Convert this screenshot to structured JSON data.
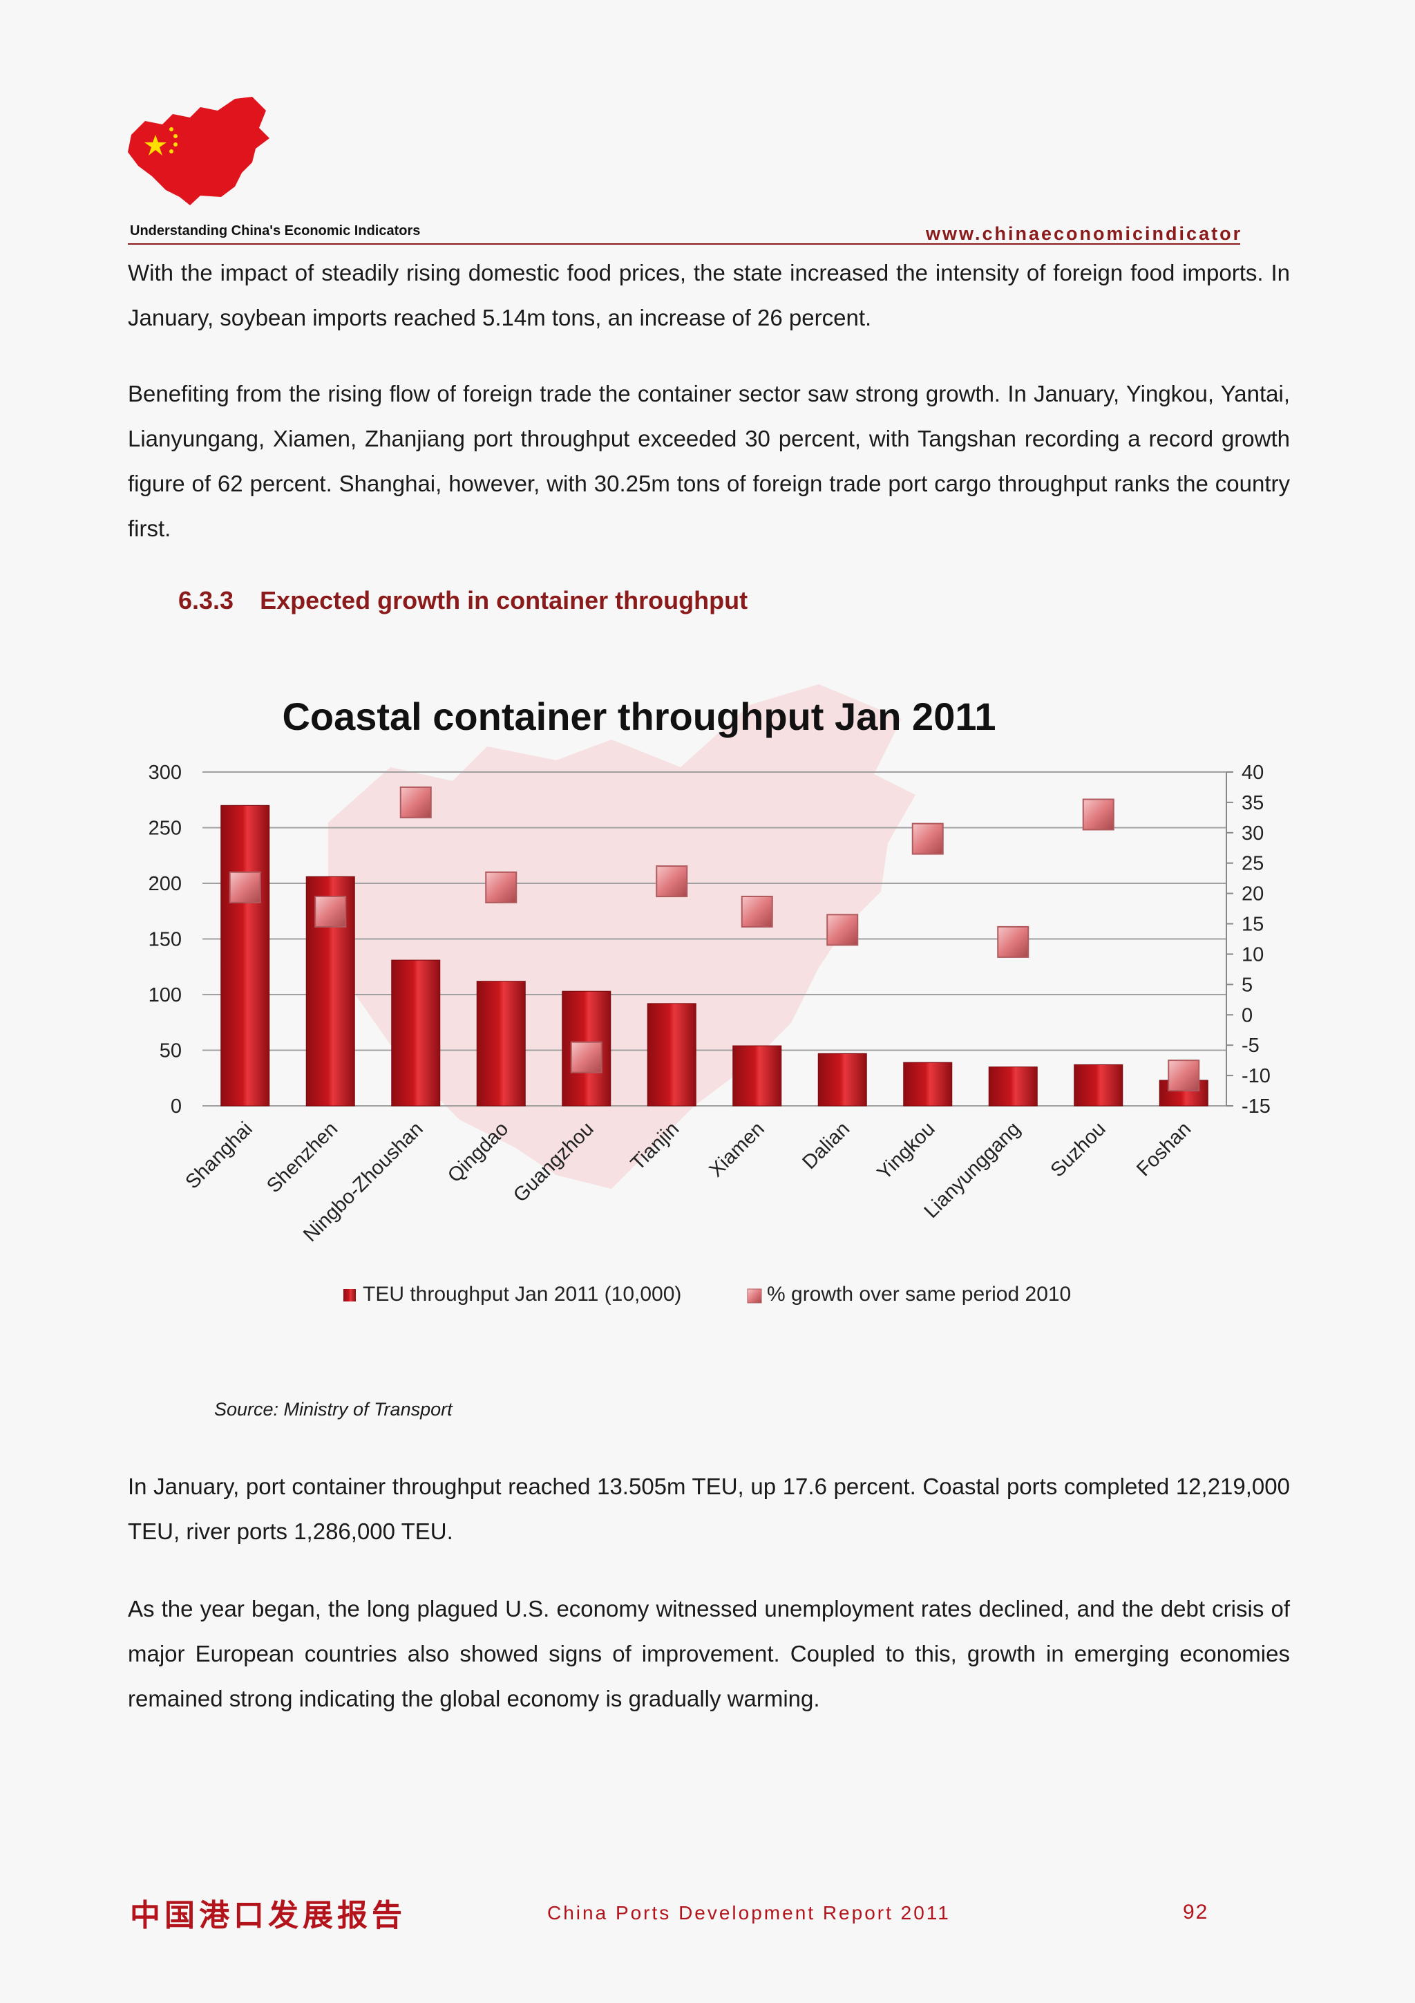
{
  "header": {
    "tagline": "Understanding China's Economic Indicators",
    "website": "www.chinaeconomicindicator"
  },
  "paragraphs": [
    "With the impact of steadily rising domestic food prices, the state increased the intensity of foreign food imports. In January, soybean imports reached 5.14m tons, an increase of 26 percent.",
    "Benefiting from the rising flow of foreign trade the container sector saw strong growth. In January, Yingkou, Yantai, Lianyungang, Xiamen, Zhanjiang port throughput exceeded 30 percent, with Tangshan recording a record growth figure of 62 percent. Shanghai, however, with 30.25m tons of foreign trade port cargo throughput ranks the country first.",
    "In January, port container throughput reached 13.505m TEU, up 17.6 percent. Coastal ports completed 12,219,000 TEU, river ports 1,286,000 TEU.",
    "As the year began, the long plagued U.S. economy witnessed unemployment rates declined, and the debt crisis of major European countries also showed signs of improvement. Coupled to this, growth in emerging economies remained strong indicating the global economy is gradually warming."
  ],
  "section": {
    "number": "6.3.3",
    "title": "Expected growth in container throughput"
  },
  "chart_data": {
    "type": "bar",
    "title": "Coastal container throughput Jan 2011",
    "categories": [
      "Shanghai",
      "Shenzhen",
      "Ningbo-Zhoushan",
      "Qingdao",
      "Guangzhou",
      "Tianjin",
      "Xiamen",
      "Dalian",
      "Yingkou",
      "Lianyunggang",
      "Suzhou",
      "Foshan"
    ],
    "series": [
      {
        "name": "TEU throughput Jan 2011 (10,000)",
        "type": "bar",
        "axis": "left",
        "values": [
          270,
          206,
          131,
          112,
          103,
          92,
          54,
          47,
          39,
          35,
          37,
          23
        ]
      },
      {
        "name": "% growth over same period 2010",
        "type": "marker",
        "axis": "right",
        "values": [
          21,
          17,
          35,
          21,
          -7,
          22,
          17,
          14,
          29,
          12,
          33,
          -10
        ]
      }
    ],
    "ylim": [
      0,
      300
    ],
    "yticks": [
      0,
      50,
      100,
      150,
      200,
      250,
      300
    ],
    "y2lim": [
      -15,
      40
    ],
    "y2ticks": [
      -15,
      -10,
      -5,
      0,
      5,
      10,
      15,
      20,
      25,
      30,
      35,
      40
    ],
    "legend": "bottom",
    "grid": true,
    "colors": {
      "bar": "#c8161d",
      "marker": "#e07a7e",
      "grid": "#a0a0a0"
    }
  },
  "source": "Source: Ministry of Transport",
  "footer": {
    "chinese_title": "中国港口发展报告",
    "title": "China Ports Development Report 2011",
    "page": "92"
  }
}
